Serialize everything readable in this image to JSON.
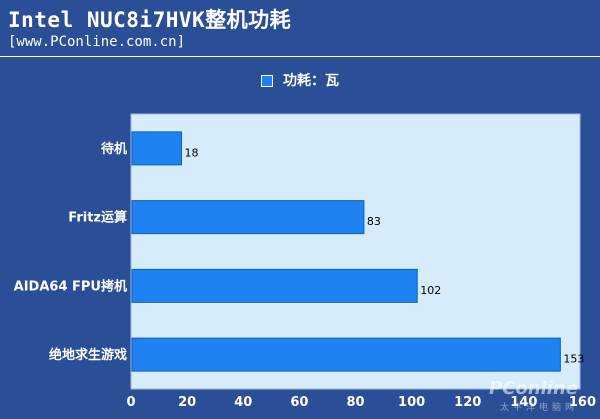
{
  "header": {
    "title": "Intel NUC8i7HVK整机功耗",
    "subtitle": "[www.PConline.com.cn]"
  },
  "watermark": {
    "logo": "PConline",
    "tagline": "太平洋电脑网"
  },
  "colors": {
    "background": "#2b4f96",
    "plot_area": "#d6ecfa",
    "bar": "#1e82f0"
  },
  "chart_data": {
    "type": "bar",
    "orientation": "horizontal",
    "categories": [
      "待机",
      "Fritz运算",
      "AIDA64 FPU拷机",
      "绝地求生游戏"
    ],
    "series": [
      {
        "name": "功耗：瓦",
        "values": [
          18,
          83,
          102,
          153
        ]
      }
    ],
    "xlim": [
      0,
      160
    ],
    "xticks": [
      0,
      20,
      40,
      60,
      80,
      100,
      120,
      140,
      160
    ],
    "legend": "top-center",
    "grid": false
  }
}
